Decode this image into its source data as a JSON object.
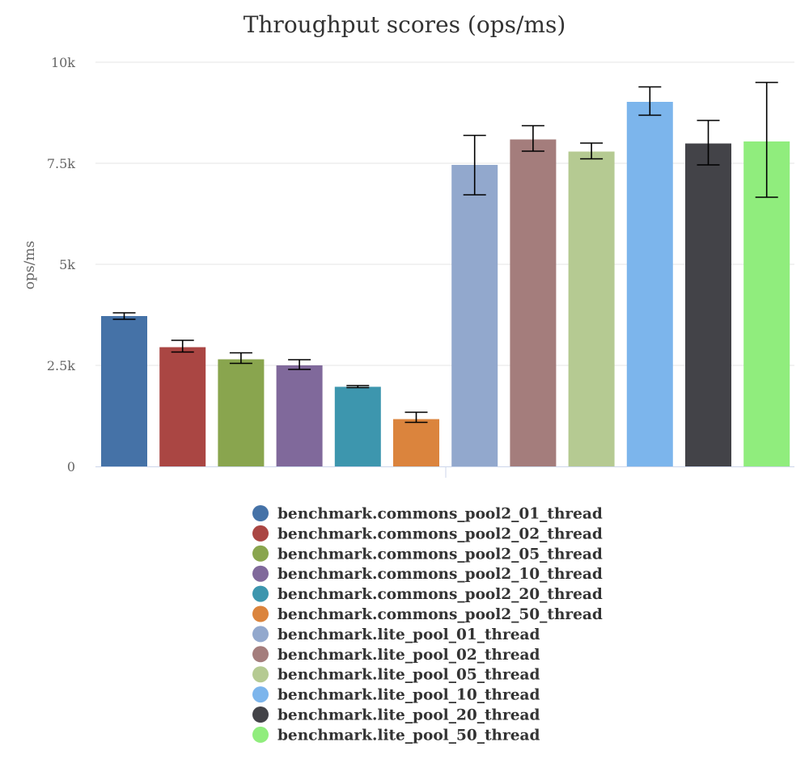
{
  "chart_data": {
    "type": "bar",
    "title": "Throughput scores (ops/ms)",
    "xlabel": "",
    "ylabel": "ops/ms",
    "ylim": [
      0,
      10000
    ],
    "yticks": [
      {
        "value": 0,
        "label": "0"
      },
      {
        "value": 2500,
        "label": "2.5k"
      },
      {
        "value": 5000,
        "label": "5k"
      },
      {
        "value": 7500,
        "label": "7.5k"
      },
      {
        "value": 10000,
        "label": "10k"
      }
    ],
    "grid": true,
    "legend_position": "bottom",
    "series": [
      {
        "name": "benchmark.commons_pool2_01_thread",
        "value": 3720,
        "error_low": 3640,
        "error_high": 3800,
        "color": "#4572a7"
      },
      {
        "name": "benchmark.commons_pool2_02_thread",
        "value": 2950,
        "error_low": 2830,
        "error_high": 3120,
        "color": "#aa4643"
      },
      {
        "name": "benchmark.commons_pool2_05_thread",
        "value": 2650,
        "error_low": 2550,
        "error_high": 2810,
        "color": "#89a54e"
      },
      {
        "name": "benchmark.commons_pool2_10_thread",
        "value": 2500,
        "error_low": 2400,
        "error_high": 2640,
        "color": "#80699b"
      },
      {
        "name": "benchmark.commons_pool2_20_thread",
        "value": 1970,
        "error_low": 1950,
        "error_high": 2000,
        "color": "#3d96ae"
      },
      {
        "name": "benchmark.commons_pool2_50_thread",
        "value": 1170,
        "error_low": 1090,
        "error_high": 1340,
        "color": "#db843d"
      },
      {
        "name": "benchmark.lite_pool_01_thread",
        "value": 7460,
        "error_low": 6720,
        "error_high": 8190,
        "color": "#92a8cd"
      },
      {
        "name": "benchmark.lite_pool_02_thread",
        "value": 8090,
        "error_low": 7800,
        "error_high": 8430,
        "color": "#a47d7c"
      },
      {
        "name": "benchmark.lite_pool_05_thread",
        "value": 7790,
        "error_low": 7610,
        "error_high": 8000,
        "color": "#b5ca92"
      },
      {
        "name": "benchmark.lite_pool_10_thread",
        "value": 9020,
        "error_low": 8690,
        "error_high": 9390,
        "color": "#7cb5ec"
      },
      {
        "name": "benchmark.lite_pool_20_thread",
        "value": 7990,
        "error_low": 7460,
        "error_high": 8560,
        "color": "#434348"
      },
      {
        "name": "benchmark.lite_pool_50_thread",
        "value": 8040,
        "error_low": 6660,
        "error_high": 9500,
        "color": "#90ed7d"
      }
    ]
  }
}
